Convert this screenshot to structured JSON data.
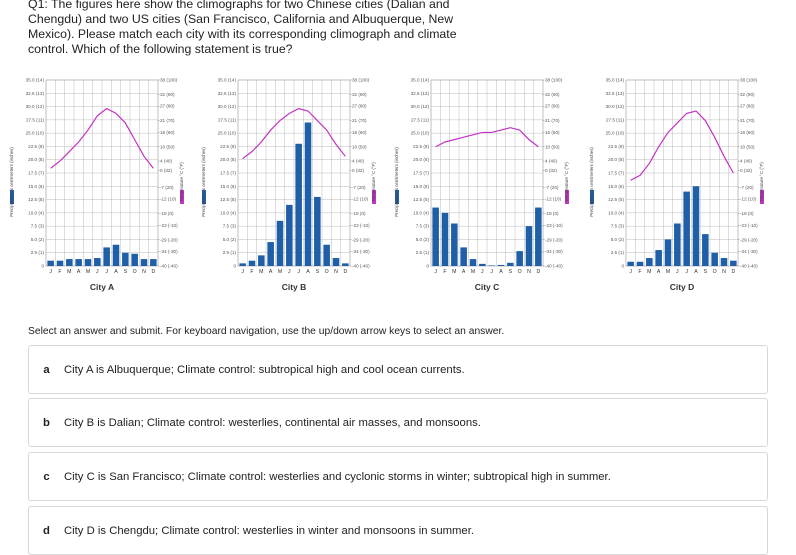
{
  "question": "Q1: The figures here show the climographs for two Chinese cities (Dalian and Chengdu) and two US cities (San Francisco, California and Albuquerque, New Mexico). Please match each city with its corresponding climograph and climate control. Which of the following statement is true?",
  "chart_data": [
    {
      "type": "climograph",
      "xlabel": "City A",
      "ylabel": "Precipitation in centimeters (inches)",
      "y2label": "Temperature °C (°F)",
      "categories": [
        "J",
        "F",
        "M",
        "A",
        "M",
        "J",
        "J",
        "A",
        "S",
        "O",
        "N",
        "D"
      ],
      "series": [
        {
          "color": "#1f5fa8",
          "values": [
            1.0,
            1.0,
            1.3,
            1.3,
            1.3,
            1.5,
            3.5,
            4.0,
            2.5,
            2.3,
            1.3,
            1.3
          ]
        },
        {
          "color": "#c233c2",
          "axis": "y2",
          "values": [
            1,
            4,
            8,
            12,
            17,
            23,
            26,
            24,
            20,
            13,
            6,
            1
          ]
        }
      ],
      "ylim": [
        0,
        35
      ],
      "yticks": [
        0,
        {
          "value": 2.5,
          "label": "2.5 (1)"
        },
        {
          "value": 5,
          "label": "5.0 (2)"
        },
        {
          "value": 7.5,
          "label": "7.5 (3)"
        },
        {
          "value": 10,
          "label": "10.0 (4)"
        },
        {
          "value": 12.5,
          "label": "12.5 (5)"
        },
        {
          "value": 15,
          "label": "15.0 (6)"
        },
        {
          "value": 17.5,
          "label": "17.5 (7)"
        },
        {
          "value": 20,
          "label": "20.0 (8)"
        },
        {
          "value": 22.5,
          "label": "22.5 (9)"
        },
        {
          "value": 25,
          "label": "25.0 (10)"
        },
        {
          "value": 27.5,
          "label": "27.5 (11)"
        },
        {
          "value": 30,
          "label": "30.0 (12)"
        },
        {
          "value": 32.5,
          "label": "32.5 (13)"
        },
        {
          "value": 35,
          "label": "35.0 (14)"
        }
      ],
      "y2lim": [
        -40,
        38
      ],
      "y2ticks": [
        {
          "value": 38,
          "label": "38 (100)"
        },
        {
          "value": 32,
          "label": "32 (90)"
        },
        {
          "value": 27,
          "label": "27 (80)"
        },
        {
          "value": 21,
          "label": "21 (70)"
        },
        {
          "value": 16,
          "label": "16 (60)"
        },
        {
          "value": 10,
          "label": "10 (50)"
        },
        {
          "value": 4,
          "label": "4 (40)"
        },
        {
          "value": 0,
          "label": "0 (32)"
        },
        {
          "value": -7,
          "label": "-7 (20)"
        },
        {
          "value": -12,
          "label": "-12 (10)"
        },
        {
          "value": -18,
          "label": "-18 (0)"
        },
        {
          "value": -23,
          "label": "-23 (-10)"
        },
        {
          "value": -29,
          "label": "-29 (-20)"
        },
        {
          "value": -34,
          "label": "-34 (-30)"
        },
        {
          "value": -40,
          "label": "-40 (-40)"
        }
      ],
      "grid": true
    },
    {
      "type": "climograph",
      "xlabel": "City B",
      "ylabel": "Precipitation in centimeters (inches)",
      "y2label": "Temperature °C (°F)",
      "categories": [
        "J",
        "F",
        "M",
        "A",
        "M",
        "J",
        "J",
        "A",
        "S",
        "O",
        "N",
        "D"
      ],
      "series": [
        {
          "color": "#1f5fa8",
          "values": [
            0.5,
            1.0,
            2.0,
            4.5,
            8.5,
            11.5,
            23,
            27,
            13,
            4,
            1.5,
            0.5
          ]
        },
        {
          "color": "#c233c2",
          "axis": "y2",
          "values": [
            5,
            8,
            12,
            17,
            21,
            24,
            26,
            25,
            21,
            17,
            11,
            6
          ]
        }
      ],
      "ylim": [
        0,
        35
      ],
      "yticks": [
        0,
        {
          "value": 2.5,
          "label": "2.5 (1)"
        },
        {
          "value": 5,
          "label": "5.0 (2)"
        },
        {
          "value": 7.5,
          "label": "7.5 (3)"
        },
        {
          "value": 10,
          "label": "10.0 (4)"
        },
        {
          "value": 12.5,
          "label": "12.5 (5)"
        },
        {
          "value": 15,
          "label": "15.0 (6)"
        },
        {
          "value": 17.5,
          "label": "17.5 (7)"
        },
        {
          "value": 20,
          "label": "20.0 (8)"
        },
        {
          "value": 22.5,
          "label": "22.5 (9)"
        },
        {
          "value": 25,
          "label": "25.0 (10)"
        },
        {
          "value": 27.5,
          "label": "27.5 (11)"
        },
        {
          "value": 30,
          "label": "30.0 (12)"
        },
        {
          "value": 32.5,
          "label": "32.5 (13)"
        },
        {
          "value": 35,
          "label": "35.0 (14)"
        }
      ],
      "y2lim": [
        -40,
        38
      ],
      "y2ticks": [
        {
          "value": 38,
          "label": "38 (100)"
        },
        {
          "value": 32,
          "label": "32 (90)"
        },
        {
          "value": 27,
          "label": "27 (80)"
        },
        {
          "value": 21,
          "label": "21 (70)"
        },
        {
          "value": 16,
          "label": "16 (60)"
        },
        {
          "value": 10,
          "label": "10 (50)"
        },
        {
          "value": 4,
          "label": "4 (40)"
        },
        {
          "value": 0,
          "label": "0 (32)"
        },
        {
          "value": -7,
          "label": "-7 (20)"
        },
        {
          "value": -12,
          "label": "-12 (10)"
        },
        {
          "value": -18,
          "label": "-18 (0)"
        },
        {
          "value": -23,
          "label": "-23 (-10)"
        },
        {
          "value": -29,
          "label": "-29 (-20)"
        },
        {
          "value": -34,
          "label": "-34 (-30)"
        },
        {
          "value": -40,
          "label": "-40 (-40)"
        }
      ],
      "grid": true
    },
    {
      "type": "climograph",
      "xlabel": "City C",
      "ylabel": "Precipitation in centimeters (inches)",
      "y2label": "Temperature °C (°F)",
      "categories": [
        "J",
        "F",
        "M",
        "A",
        "M",
        "J",
        "J",
        "A",
        "S",
        "O",
        "N",
        "D"
      ],
      "series": [
        {
          "color": "#1f5fa8",
          "values": [
            11,
            10,
            8,
            3.5,
            1.3,
            0.4,
            0.1,
            0.2,
            0.6,
            2.8,
            7.5,
            11
          ]
        },
        {
          "color": "#c233c2",
          "axis": "y2",
          "values": [
            10,
            12,
            13,
            14,
            15,
            16,
            16,
            17,
            18,
            17,
            13,
            10
          ]
        }
      ],
      "ylim": [
        0,
        35
      ],
      "yticks": [
        0,
        {
          "value": 2.5,
          "label": "2.5 (1)"
        },
        {
          "value": 5,
          "label": "5.0 (2)"
        },
        {
          "value": 7.5,
          "label": "7.5 (3)"
        },
        {
          "value": 10,
          "label": "10.0 (4)"
        },
        {
          "value": 12.5,
          "label": "12.5 (5)"
        },
        {
          "value": 15,
          "label": "15.0 (6)"
        },
        {
          "value": 17.5,
          "label": "17.5 (7)"
        },
        {
          "value": 20,
          "label": "20.0 (8)"
        },
        {
          "value": 22.5,
          "label": "22.5 (9)"
        },
        {
          "value": 25,
          "label": "25.0 (10)"
        },
        {
          "value": 27.5,
          "label": "27.5 (11)"
        },
        {
          "value": 30,
          "label": "30.0 (12)"
        },
        {
          "value": 32.5,
          "label": "32.5 (13)"
        },
        {
          "value": 35,
          "label": "35.0 (14)"
        }
      ],
      "y2lim": [
        -40,
        38
      ],
      "y2ticks": [
        {
          "value": 38,
          "label": "38 (100)"
        },
        {
          "value": 32,
          "label": "32 (90)"
        },
        {
          "value": 27,
          "label": "27 (80)"
        },
        {
          "value": 21,
          "label": "21 (70)"
        },
        {
          "value": 16,
          "label": "16 (60)"
        },
        {
          "value": 10,
          "label": "10 (50)"
        },
        {
          "value": 4,
          "label": "4 (40)"
        },
        {
          "value": 0,
          "label": "0 (32)"
        },
        {
          "value": -7,
          "label": "-7 (20)"
        },
        {
          "value": -12,
          "label": "-12 (10)"
        },
        {
          "value": -18,
          "label": "-18 (0)"
        },
        {
          "value": -23,
          "label": "-23 (-10)"
        },
        {
          "value": -29,
          "label": "-29 (-20)"
        },
        {
          "value": -34,
          "label": "-34 (-30)"
        },
        {
          "value": -40,
          "label": "-40 (-40)"
        }
      ],
      "grid": true
    },
    {
      "type": "climograph",
      "xlabel": "City D",
      "ylabel": "Precipitation in centimeters (inches)",
      "y2label": "Temperature °C (°F)",
      "categories": [
        "J",
        "F",
        "M",
        "A",
        "M",
        "J",
        "J",
        "A",
        "S",
        "O",
        "N",
        "D"
      ],
      "series": [
        {
          "color": "#1f5fa8",
          "values": [
            0.8,
            0.8,
            1.5,
            3,
            5,
            8,
            14,
            15,
            6,
            2.5,
            1.5,
            1
          ]
        },
        {
          "color": "#c233c2",
          "axis": "y2",
          "values": [
            -4,
            -2,
            3,
            10,
            16,
            20,
            24,
            25,
            21,
            14,
            6,
            -1
          ]
        }
      ],
      "ylim": [
        0,
        35
      ],
      "yticks": [
        0,
        {
          "value": 2.5,
          "label": "2.5 (1)"
        },
        {
          "value": 5,
          "label": "5.0 (2)"
        },
        {
          "value": 7.5,
          "label": "7.5 (3)"
        },
        {
          "value": 10,
          "label": "10.0 (4)"
        },
        {
          "value": 12.5,
          "label": "12.5 (5)"
        },
        {
          "value": 15,
          "label": "15.0 (6)"
        },
        {
          "value": 17.5,
          "label": "17.5 (7)"
        },
        {
          "value": 20,
          "label": "20.0 (8)"
        },
        {
          "value": 22.5,
          "label": "22.5 (9)"
        },
        {
          "value": 25,
          "label": "25.0 (10)"
        },
        {
          "value": 27.5,
          "label": "27.5 (11)"
        },
        {
          "value": 30,
          "label": "30.0 (12)"
        },
        {
          "value": 32.5,
          "label": "32.5 (13)"
        },
        {
          "value": 35,
          "label": "35.0 (14)"
        }
      ],
      "y2lim": [
        -40,
        38
      ],
      "y2ticks": [
        {
          "value": 38,
          "label": "38 (100)"
        },
        {
          "value": 32,
          "label": "32 (90)"
        },
        {
          "value": 27,
          "label": "27 (80)"
        },
        {
          "value": 21,
          "label": "21 (70)"
        },
        {
          "value": 16,
          "label": "16 (60)"
        },
        {
          "value": 10,
          "label": "10 (50)"
        },
        {
          "value": 4,
          "label": "4 (40)"
        },
        {
          "value": 0,
          "label": "0 (32)"
        },
        {
          "value": -7,
          "label": "-7 (20)"
        },
        {
          "value": -12,
          "label": "-12 (10)"
        },
        {
          "value": -18,
          "label": "-18 (0)"
        },
        {
          "value": -23,
          "label": "-23 (-10)"
        },
        {
          "value": -29,
          "label": "-29 (-20)"
        },
        {
          "value": -34,
          "label": "-34 (-30)"
        },
        {
          "value": -40,
          "label": "-40 (-40)"
        }
      ],
      "grid": true
    }
  ],
  "instructions": "Select an answer and submit. For keyboard navigation, use the up/down arrow keys to select an answer.",
  "options": [
    {
      "letter": "a",
      "text": "City A is Albuquerque; Climate control: subtropical high and cool ocean currents."
    },
    {
      "letter": "b",
      "text": "City B is Dalian; Climate control: westerlies, continental air masses, and monsoons."
    },
    {
      "letter": "c",
      "text": "City C is San Francisco; Climate control: westerlies and cyclonic storms in winter; subtropical high in summer."
    },
    {
      "letter": "d",
      "text": "City D is Chengdu; Climate control: westerlies in winter and monsoons in summer."
    }
  ]
}
